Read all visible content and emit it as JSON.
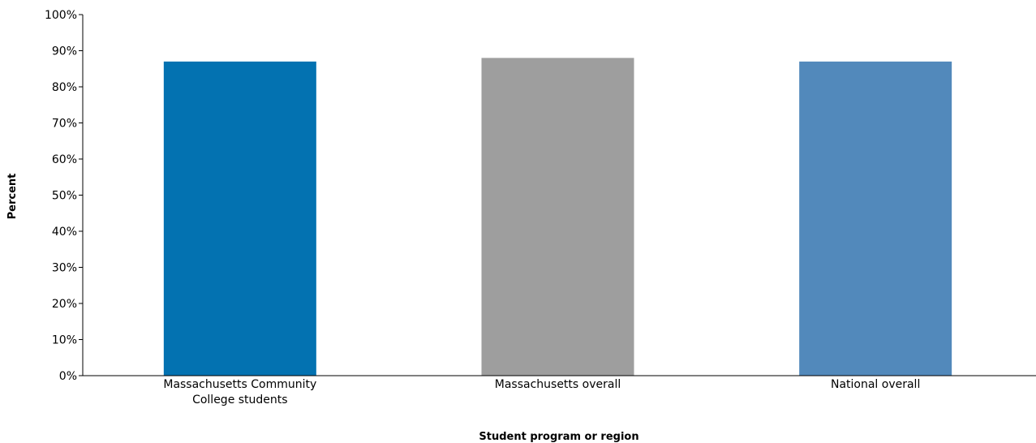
{
  "chart_data": {
    "type": "bar",
    "categories": [
      [
        "Massachusetts Community",
        "College students"
      ],
      [
        "Massachusetts overall"
      ],
      [
        "National overall"
      ]
    ],
    "values": [
      87,
      88,
      87
    ],
    "colors": [
      "#0372b1",
      "#9e9e9e",
      "#5289bb"
    ],
    "xlabel": "Student program or region",
    "ylabel": "Percent",
    "ylim": [
      0,
      100
    ],
    "yticks": [
      0,
      10,
      20,
      30,
      40,
      50,
      60,
      70,
      80,
      90,
      100
    ],
    "ytick_labels": [
      "0%",
      "10%",
      "20%",
      "30%",
      "40%",
      "50%",
      "60%",
      "70%",
      "80%",
      "90%",
      "100%"
    ],
    "grid": false,
    "legend": "none"
  }
}
